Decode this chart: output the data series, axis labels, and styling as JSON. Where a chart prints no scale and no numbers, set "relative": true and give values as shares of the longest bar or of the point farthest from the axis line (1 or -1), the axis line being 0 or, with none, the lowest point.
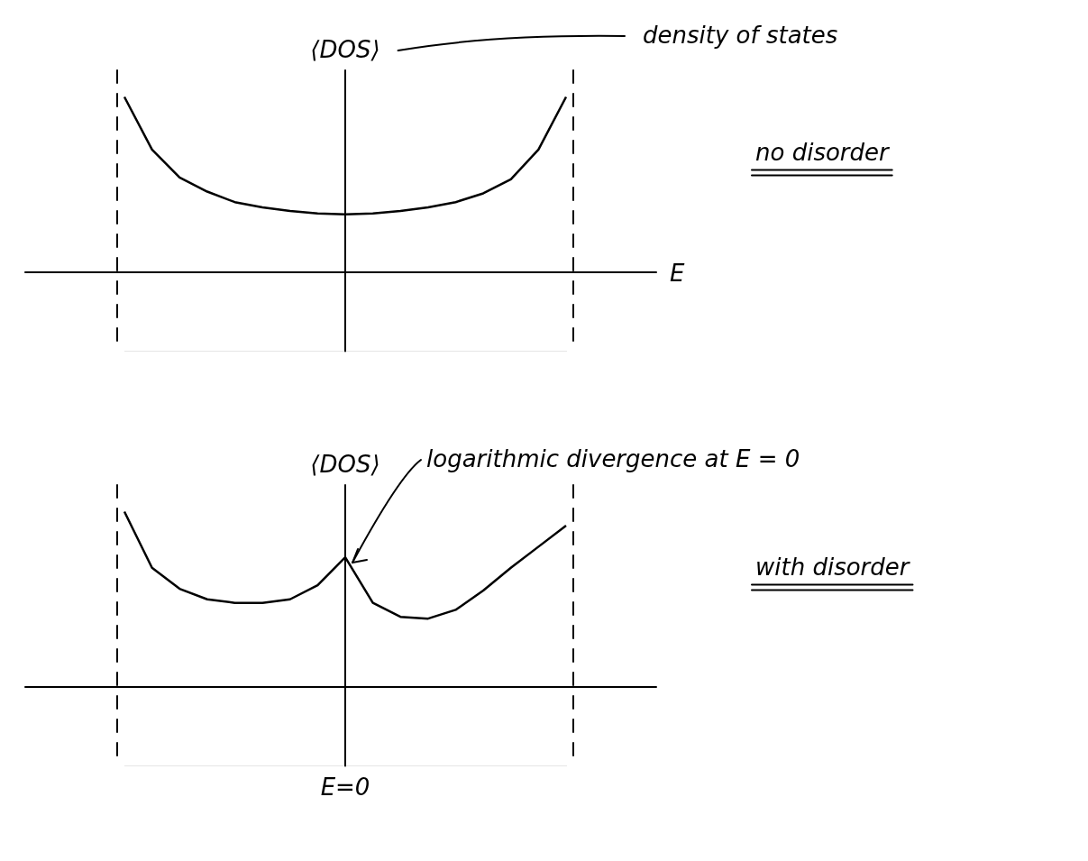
{
  "chart_data": [
    {
      "type": "line",
      "relative": true,
      "ylabel": "⟨DOS⟩",
      "xlabel": "E",
      "color": "#000000",
      "marker": "none",
      "categories": [
        null,
        null,
        null,
        null,
        null,
        null,
        null,
        null,
        null,
        null,
        null,
        null,
        null,
        null,
        null,
        null,
        null
      ],
      "values": [
        1.0,
        0.7,
        0.54,
        0.46,
        0.4,
        0.37,
        0.35,
        0.335,
        0.33,
        0.335,
        0.35,
        0.37,
        0.4,
        0.45,
        0.53,
        0.7,
        1.0
      ],
      "annotations": [
        "density of states",
        "no disorder"
      ]
    },
    {
      "type": "line",
      "relative": true,
      "ylabel": "⟨DOS⟩",
      "color": "#000000",
      "marker": "none",
      "categories": [
        null,
        null,
        null,
        null,
        null,
        null,
        null,
        null,
        null,
        null,
        null,
        null,
        null,
        null,
        null,
        null,
        null
      ],
      "values": [
        1.0,
        0.68,
        0.56,
        0.5,
        0.48,
        0.48,
        0.5,
        0.58,
        0.74,
        0.48,
        0.4,
        0.39,
        0.44,
        0.55,
        0.68,
        0.8,
        0.92
      ],
      "annotations": [
        "logarithmic divergence at E = 0",
        "with disorder",
        "E=0"
      ]
    }
  ]
}
